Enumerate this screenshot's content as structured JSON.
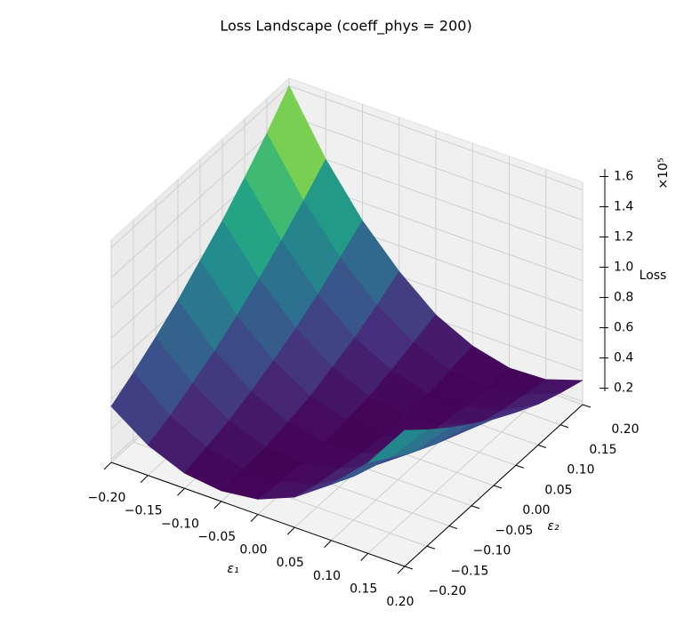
{
  "chart_data": {
    "type": "surface",
    "title": "Loss Landscape (coeff_phys = 200)",
    "x_label": "ε₁",
    "y_label": "ε₂",
    "z_label": "Loss",
    "z_offset_label": "×10⁵",
    "colormap": "viridis",
    "grid": true,
    "x": [
      -0.2,
      -0.15,
      -0.1,
      -0.05,
      0,
      0.05,
      0.1,
      0.15,
      0.2
    ],
    "y": [
      -0.2,
      -0.15,
      -0.1,
      -0.05,
      0,
      0.05,
      0.1,
      0.15,
      0.2
    ],
    "z": [
      [
        0.55,
        0.38,
        0.28,
        0.25,
        0.28,
        0.38,
        0.55,
        0.78,
        1.08
      ],
      [
        0.64,
        0.44,
        0.32,
        0.26,
        0.26,
        0.33,
        0.47,
        0.68,
        0.95
      ],
      [
        0.74,
        0.52,
        0.36,
        0.27,
        0.25,
        0.3,
        0.41,
        0.58,
        0.83
      ],
      [
        0.85,
        0.6,
        0.42,
        0.3,
        0.25,
        0.27,
        0.35,
        0.5,
        0.72
      ],
      [
        0.98,
        0.7,
        0.49,
        0.34,
        0.27,
        0.25,
        0.31,
        0.43,
        0.62
      ],
      [
        1.11,
        0.81,
        0.57,
        0.4,
        0.29,
        0.25,
        0.28,
        0.37,
        0.53
      ],
      [
        1.26,
        0.93,
        0.66,
        0.46,
        0.33,
        0.26,
        0.26,
        0.32,
        0.45
      ],
      [
        1.42,
        1.06,
        0.77,
        0.54,
        0.38,
        0.28,
        0.25,
        0.29,
        0.39
      ],
      [
        1.6,
        1.2,
        0.88,
        0.63,
        0.43,
        0.31,
        0.25,
        0.26,
        0.34
      ]
    ],
    "xlim": [
      -0.2,
      0.2
    ],
    "ylim": [
      -0.2,
      0.2
    ],
    "zlim": [
      0.18,
      1.65
    ],
    "xticks": [
      {
        "value": -0.2,
        "label": "−0.20"
      },
      {
        "value": -0.15,
        "label": "−0.15"
      },
      {
        "value": -0.1,
        "label": "−0.10"
      },
      {
        "value": -0.05,
        "label": "−0.05"
      },
      {
        "value": 0,
        "label": "0.00"
      },
      {
        "value": 0.05,
        "label": "0.05"
      },
      {
        "value": 0.1,
        "label": "0.10"
      },
      {
        "value": 0.15,
        "label": "0.15"
      },
      {
        "value": 0.2,
        "label": "0.20"
      }
    ],
    "yticks": [
      {
        "value": -0.2,
        "label": "−0.20"
      },
      {
        "value": -0.15,
        "label": "−0.15"
      },
      {
        "value": -0.1,
        "label": "−0.10"
      },
      {
        "value": -0.05,
        "label": "−0.05"
      },
      {
        "value": 0,
        "label": "0.00"
      },
      {
        "value": 0.05,
        "label": "0.05"
      },
      {
        "value": 0.1,
        "label": "0.10"
      },
      {
        "value": 0.15,
        "label": "0.15"
      },
      {
        "value": 0.2,
        "label": "0.20"
      }
    ],
    "zticks": [
      0.2,
      0.4,
      0.6,
      0.8,
      {
        "value": 1,
        "label": "1.0"
      },
      1.2,
      1.4,
      1.6
    ]
  }
}
